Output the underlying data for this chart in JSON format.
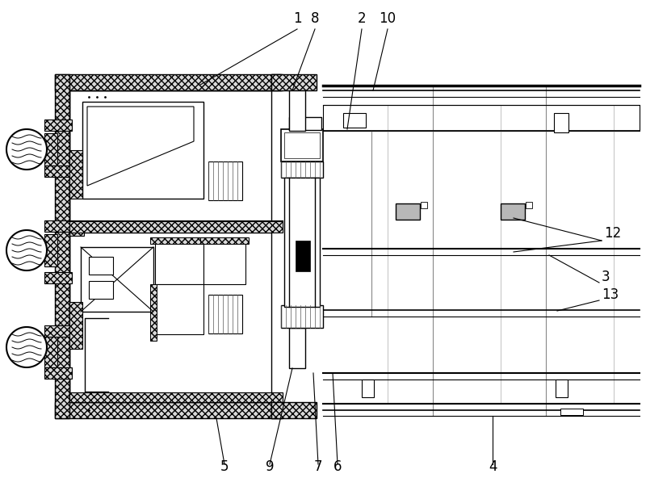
{
  "bg_color": "#ffffff",
  "line_color": "#000000",
  "figsize": [
    8.0,
    6.18
  ],
  "dpi": 100
}
